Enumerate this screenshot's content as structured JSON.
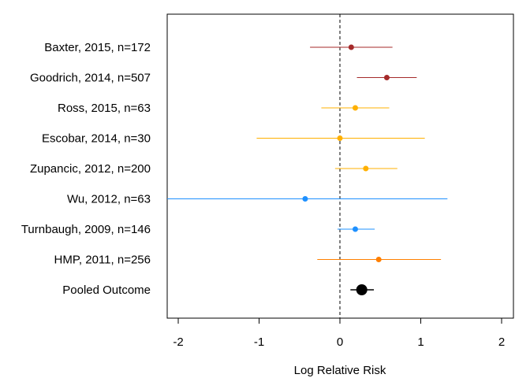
{
  "chart_data": {
    "type": "forest",
    "title": "",
    "xlabel": "Log Relative Risk",
    "ylabel": "",
    "xlim": [
      -2.15,
      2.05
    ],
    "xticks": [
      "-2",
      "-1",
      "0",
      "1",
      "2"
    ],
    "xtick_values": [
      -2,
      -1,
      0,
      1,
      2
    ],
    "reference_line": 0,
    "reference_line_style": "dashed",
    "grid": false,
    "legend": "none",
    "studies": [
      {
        "label": "Baxter, 2015, n=172",
        "estimate": 0.14,
        "lower": -0.37,
        "upper": 0.65,
        "color": "#a52a2a"
      },
      {
        "label": "Goodrich, 2014, n=507",
        "estimate": 0.58,
        "lower": 0.21,
        "upper": 0.95,
        "color": "#a52a2a"
      },
      {
        "label": "Ross, 2015, n=63",
        "estimate": 0.19,
        "lower": -0.23,
        "upper": 0.61,
        "color": "#ffb000"
      },
      {
        "label": "Escobar, 2014, n=30",
        "estimate": 0.0,
        "lower": -1.03,
        "upper": 1.05,
        "color": "#ffb000"
      },
      {
        "label": "Zupancic, 2012, n=200",
        "estimate": 0.32,
        "lower": -0.06,
        "upper": 0.71,
        "color": "#ffb000"
      },
      {
        "label": "Wu, 2012, n=63",
        "estimate": -0.43,
        "lower": -2.15,
        "upper": 1.33,
        "color": "#1e90ff"
      },
      {
        "label": "Turnbaugh, 2009, n=146",
        "estimate": 0.19,
        "lower": -0.03,
        "upper": 0.43,
        "color": "#1e90ff"
      },
      {
        "label": "HMP, 2011, n=256",
        "estimate": 0.48,
        "lower": -0.28,
        "upper": 1.25,
        "color": "#ff7f00"
      }
    ],
    "pooled": {
      "label": "Pooled Outcome",
      "estimate": 0.27,
      "lower": 0.13,
      "upper": 0.42,
      "color": "#000000"
    }
  }
}
